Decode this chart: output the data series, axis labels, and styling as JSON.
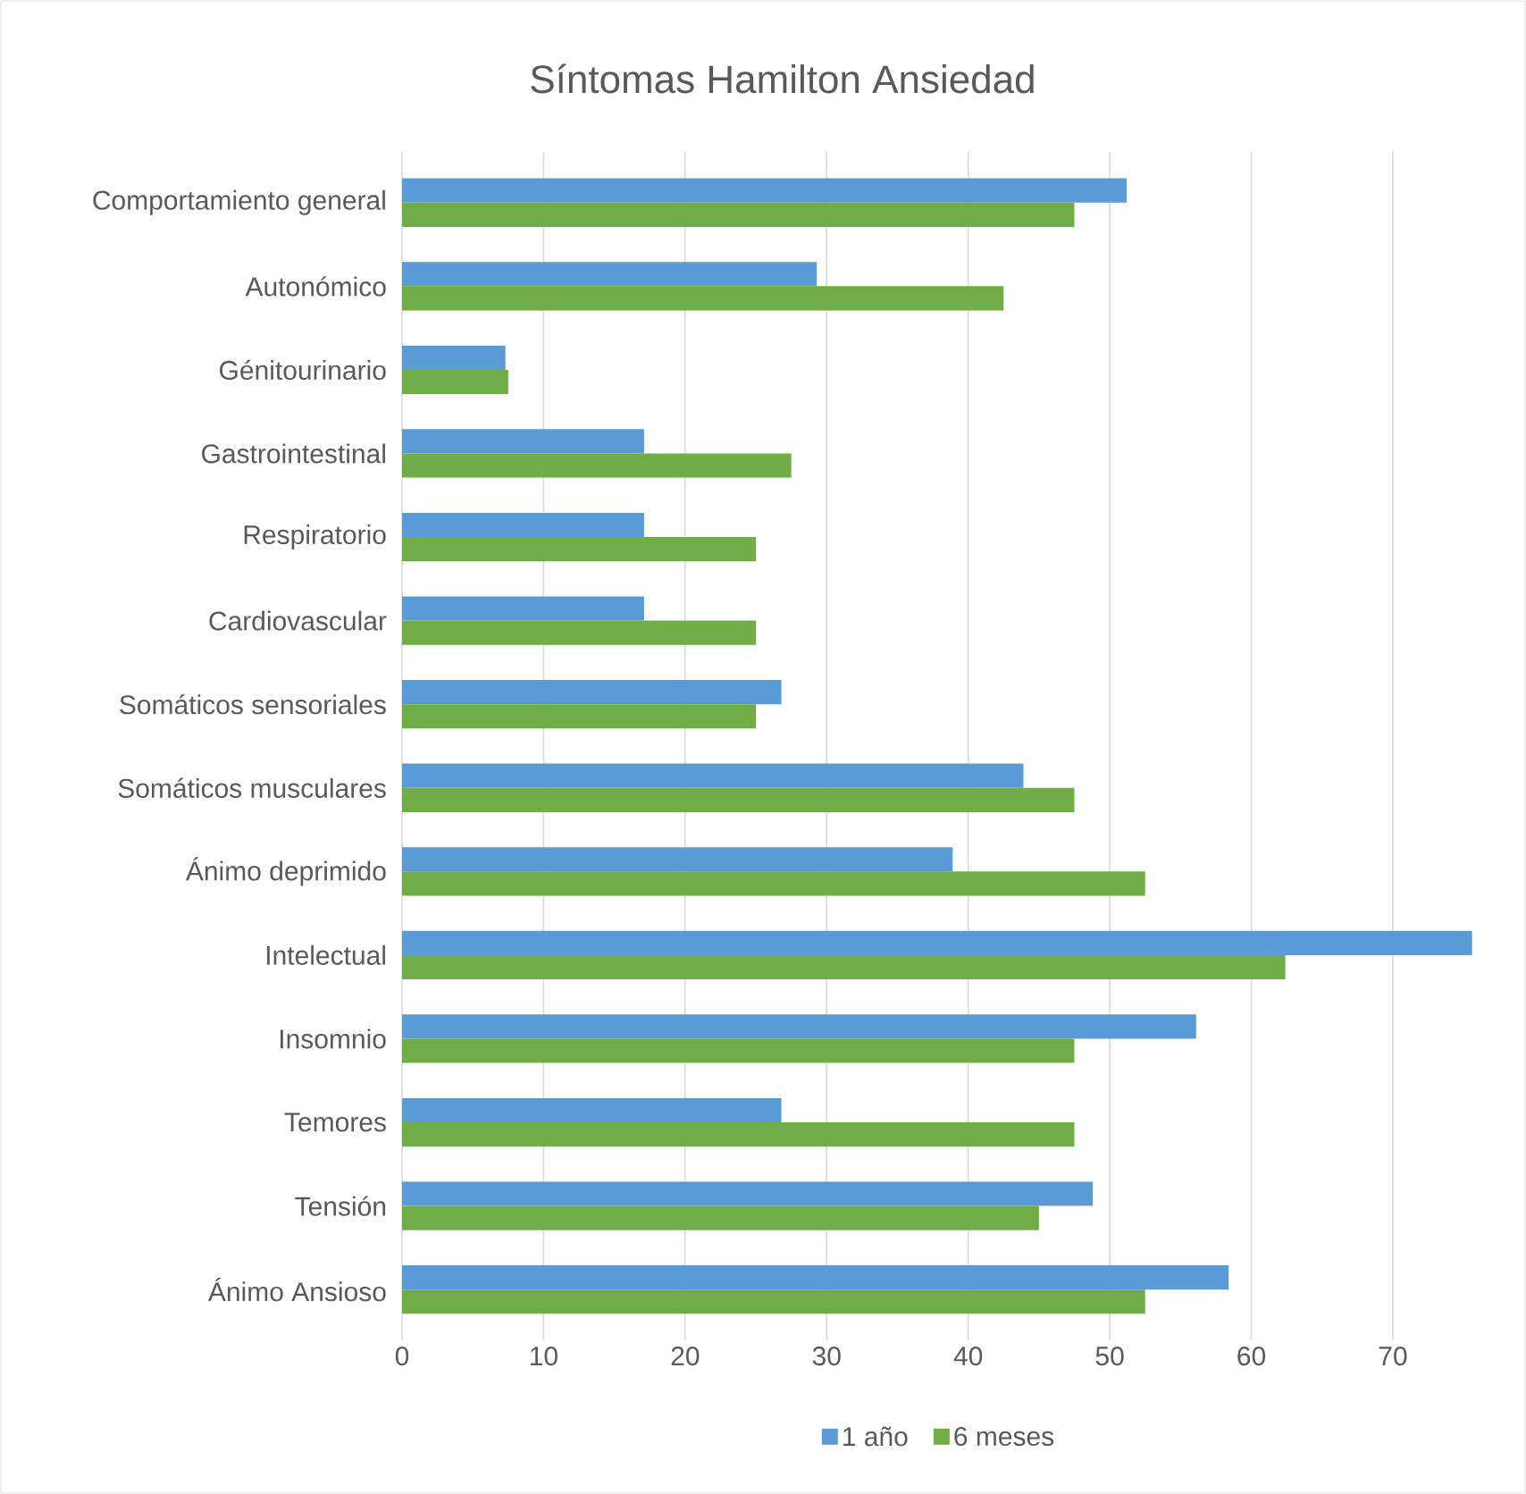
{
  "chart_data": {
    "type": "bar",
    "orientation": "horizontal",
    "title": "Síntomas Hamilton Ansiedad",
    "categories": [
      "Comportamiento general",
      "Autonómico",
      "Génitourinario",
      "Gastrointestinal",
      "Respiratorio",
      "Cardiovascular",
      "Somáticos sensoriales",
      "Somáticos musculares",
      "Ánimo deprimido",
      "Intelectual",
      "Insomnio",
      "Temores",
      "Tensión",
      "Ánimo Ansioso"
    ],
    "series": [
      {
        "name": "1 año",
        "color": "#5b9bd5",
        "values": [
          51.2,
          29.3,
          7.3,
          17.1,
          17.1,
          17.1,
          26.8,
          43.9,
          38.9,
          75.6,
          56.1,
          26.8,
          48.8,
          58.4
        ]
      },
      {
        "name": "6 meses",
        "color": "#70ad47",
        "values": [
          47.5,
          42.5,
          7.5,
          27.5,
          25.0,
          25.0,
          25.0,
          47.5,
          52.5,
          62.4,
          47.5,
          47.5,
          45.0,
          52.5
        ]
      }
    ],
    "xlim": [
      0,
      76
    ],
    "xticks": [
      0,
      10,
      20,
      30,
      40,
      50,
      60,
      70
    ],
    "grid": "x",
    "legend": "bottom"
  }
}
